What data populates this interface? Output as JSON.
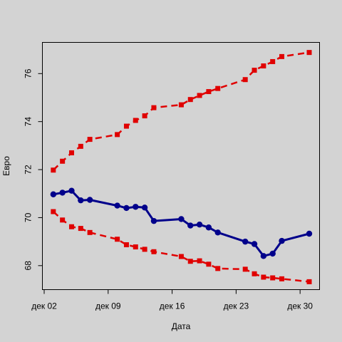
{
  "chart_data": {
    "type": "line",
    "title": "",
    "xlabel": "Дата",
    "ylabel": "Евро",
    "x_tick_labels": [
      "дек 02",
      "дек 09",
      "дек 16",
      "дек 23",
      "дек 30"
    ],
    "x_tick_dates": [
      "2014-12-02",
      "2014-12-09",
      "2014-12-16",
      "2014-12-23",
      "2014-12-30"
    ],
    "y_ticks": [
      68,
      70,
      72,
      74,
      76
    ],
    "xlim": [
      "2014-12-02",
      "2014-12-31"
    ],
    "ylim": [
      67.0,
      77.3
    ],
    "grid": false,
    "x": [
      "2014-12-03",
      "2014-12-04",
      "2014-12-05",
      "2014-12-06",
      "2014-12-07",
      "2014-12-10",
      "2014-12-11",
      "2014-12-12",
      "2014-12-13",
      "2014-12-14",
      "2014-12-17",
      "2014-12-18",
      "2014-12-19",
      "2014-12-20",
      "2014-12-21",
      "2014-12-24",
      "2014-12-25",
      "2014-12-26",
      "2014-12-27",
      "2014-12-28",
      "2014-12-31"
    ],
    "series": [
      {
        "role": "forecast",
        "color": "#00008b",
        "style": "solid",
        "marker": "circle",
        "values": [
          70.97,
          71.04,
          71.12,
          70.72,
          70.74,
          70.5,
          70.4,
          70.45,
          70.42,
          69.86,
          69.94,
          69.67,
          69.71,
          69.59,
          69.38,
          69.0,
          68.9,
          68.4,
          68.5,
          69.03,
          69.33
        ]
      },
      {
        "role": "upper bound",
        "color": "#e00000",
        "style": "dashed",
        "marker": "square",
        "values": [
          71.98,
          72.35,
          72.7,
          72.97,
          73.26,
          73.46,
          73.81,
          74.05,
          74.24,
          74.58,
          74.7,
          74.92,
          75.09,
          75.25,
          75.38,
          75.75,
          76.14,
          76.32,
          76.5,
          76.71,
          76.88
        ]
      },
      {
        "role": "lower bound",
        "color": "#e00000",
        "style": "dashed",
        "marker": "square",
        "values": [
          70.25,
          69.9,
          69.62,
          69.55,
          69.38,
          69.1,
          68.87,
          68.78,
          68.68,
          68.58,
          68.38,
          68.18,
          68.2,
          68.06,
          67.88,
          67.85,
          67.66,
          67.52,
          67.49,
          67.45,
          67.33
        ]
      }
    ]
  }
}
